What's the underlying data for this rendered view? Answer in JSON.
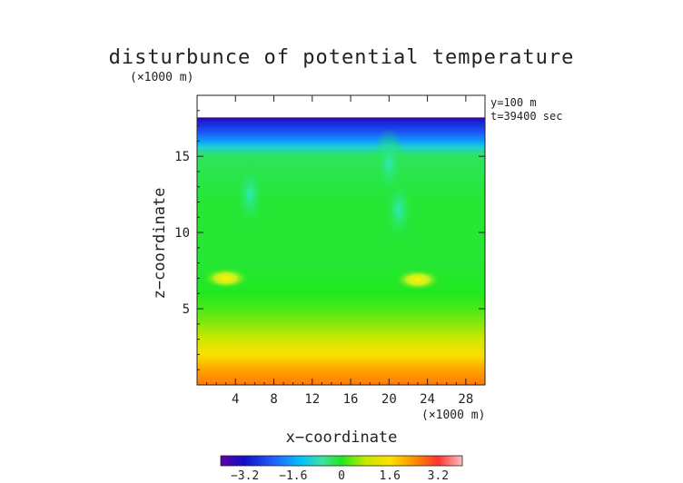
{
  "chart_data": {
    "type": "heatmap",
    "title": "disturbunce of potential temperature",
    "xlabel": "x−coordinate",
    "ylabel": "z−coordinate",
    "x_unit": "(×1000 m)",
    "y_unit": "(×1000 m)",
    "xlim": [
      0,
      30
    ],
    "ylim": [
      0,
      19
    ],
    "xticks": [
      4,
      8,
      12,
      16,
      20,
      24,
      28
    ],
    "yticks": [
      5,
      10,
      15
    ],
    "annotations": [
      "y=100 m",
      "t=39400 sec"
    ],
    "data_top": 17.5,
    "colorbar": {
      "range": [
        -4,
        4
      ],
      "ticks": [
        "−3.2",
        "−1.6",
        "0",
        "1.6",
        "3.2"
      ],
      "tick_values": [
        -3.2,
        -1.6,
        0,
        1.6,
        3.2
      ]
    },
    "profile": [
      {
        "z": 0.0,
        "value": 2.6
      },
      {
        "z": 1.0,
        "value": 2.2
      },
      {
        "z": 2.0,
        "value": 1.5
      },
      {
        "z": 3.0,
        "value": 0.9
      },
      {
        "z": 4.0,
        "value": 0.5
      },
      {
        "z": 5.0,
        "value": 0.2
      },
      {
        "z": 6.0,
        "value": 0.0
      },
      {
        "z": 8.0,
        "value": -0.1
      },
      {
        "z": 12.0,
        "value": -0.1
      },
      {
        "z": 15.0,
        "value": -0.3
      },
      {
        "z": 15.6,
        "value": -1.0
      },
      {
        "z": 16.0,
        "value": -1.7
      },
      {
        "z": 16.6,
        "value": -2.4
      },
      {
        "z": 17.2,
        "value": -2.9
      },
      {
        "z": 17.5,
        "value": -3.3
      }
    ],
    "features": [
      {
        "x": 3.0,
        "z": 7.0,
        "value": 1.3
      },
      {
        "x": 23.0,
        "z": 6.9,
        "value": 1.3
      },
      {
        "x": 5.5,
        "z": 12.5,
        "value": -0.6
      },
      {
        "x": 21.0,
        "z": 11.5,
        "value": -0.9
      },
      {
        "x": 20.0,
        "z": 14.5,
        "value": -0.8
      }
    ]
  }
}
